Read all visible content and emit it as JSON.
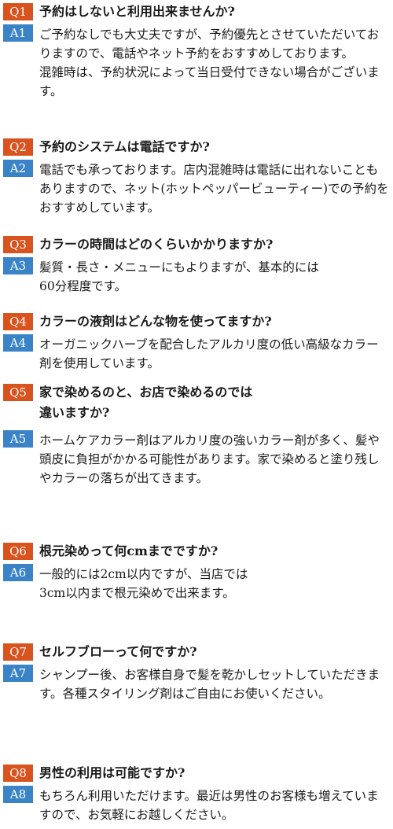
{
  "faq": [
    {
      "q_badge": "Q1",
      "question": "予約はしないと利用出来ませんか?",
      "a_badge": "A1",
      "answer": "ご予約なしでも大丈夫ですが、予約優先とさせていただいておりますので、電話やネット予約をおすすめしております。\n混雑時は、予約状況によって当日受付できない場合がございます。"
    },
    {
      "q_badge": "Q2",
      "question": "予約のシステムは電話ですか?",
      "a_badge": "A2",
      "answer": "電話でも承っております。店内混雑時は電話に出れないこともありますので、ネット(ホットペッパービューティー)での予約をおすすめしています。"
    },
    {
      "q_badge": "Q3",
      "question": "カラーの時間はどのくらいかかりますか?",
      "a_badge": "A3",
      "answer": "髪質・長さ・メニューにもよりますが、基本的には\n60分程度です。"
    },
    {
      "q_badge": "Q4",
      "question": "カラーの液剤はどんな物を使ってますか?",
      "a_badge": "A4",
      "answer": "オーガニックハーブを配合したアルカリ度の低い高級なカラー剤を使用しています。"
    },
    {
      "q_badge": "Q5",
      "question": "家で染めるのと、お店で染めるのでは\n違いますか?",
      "a_badge": "A5",
      "answer": "ホームケアカラー剤はアルカリ度の強いカラー剤が多く、髪や頭皮に負担がかかる可能性があります。家で染めると塗り残しやカラーの落ちが出てきます。"
    },
    {
      "q_badge": "Q6",
      "question": "根元染めって何cmまでですか?",
      "a_badge": "A6",
      "answer": "一般的には2cm以内ですが、当店では\n3cm以内まで根元染めで出来ます。"
    },
    {
      "q_badge": "Q7",
      "question": "セルフブローって何ですか?",
      "a_badge": "A7",
      "answer": "シャンプー後、お客様自身で髪を乾かしセットしていただきます。各種スタイリング剤はご自由にお使いください。"
    },
    {
      "q_badge": "Q8",
      "question": "男性の利用は可能ですか?",
      "a_badge": "A8",
      "answer": "もちろん利用いただけます。最近は男性のお客様も増えていますので、お気軽にお越しください。"
    }
  ]
}
